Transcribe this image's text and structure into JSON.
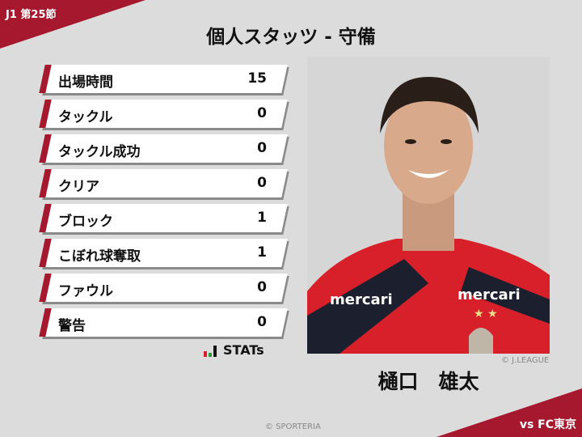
{
  "header": {
    "round": "J1 第25節",
    "title": "個人スタッツ - 守備",
    "opponent": "vs FC東京"
  },
  "stats": [
    {
      "label": "出場時間",
      "value": "15"
    },
    {
      "label": "タックル",
      "value": "0"
    },
    {
      "label": "タックル成功",
      "value": "0"
    },
    {
      "label": "クリア",
      "value": "0"
    },
    {
      "label": "ブロック",
      "value": "1"
    },
    {
      "label": "こぼれ球奪取",
      "value": "1"
    },
    {
      "label": "ファウル",
      "value": "0"
    },
    {
      "label": "警告",
      "value": "0"
    }
  ],
  "brand": {
    "stats_logo": "STATs",
    "copyright": "© SPORTERIA"
  },
  "player": {
    "name": "樋口　雄太",
    "photo_credit": "© J.LEAGUE",
    "jersey_sponsor": "mercari"
  },
  "colors": {
    "accent": "#a5182e",
    "background": "#dcdcdc",
    "jersey_red": "#d8202a",
    "jersey_dark": "#1c1f2e"
  }
}
